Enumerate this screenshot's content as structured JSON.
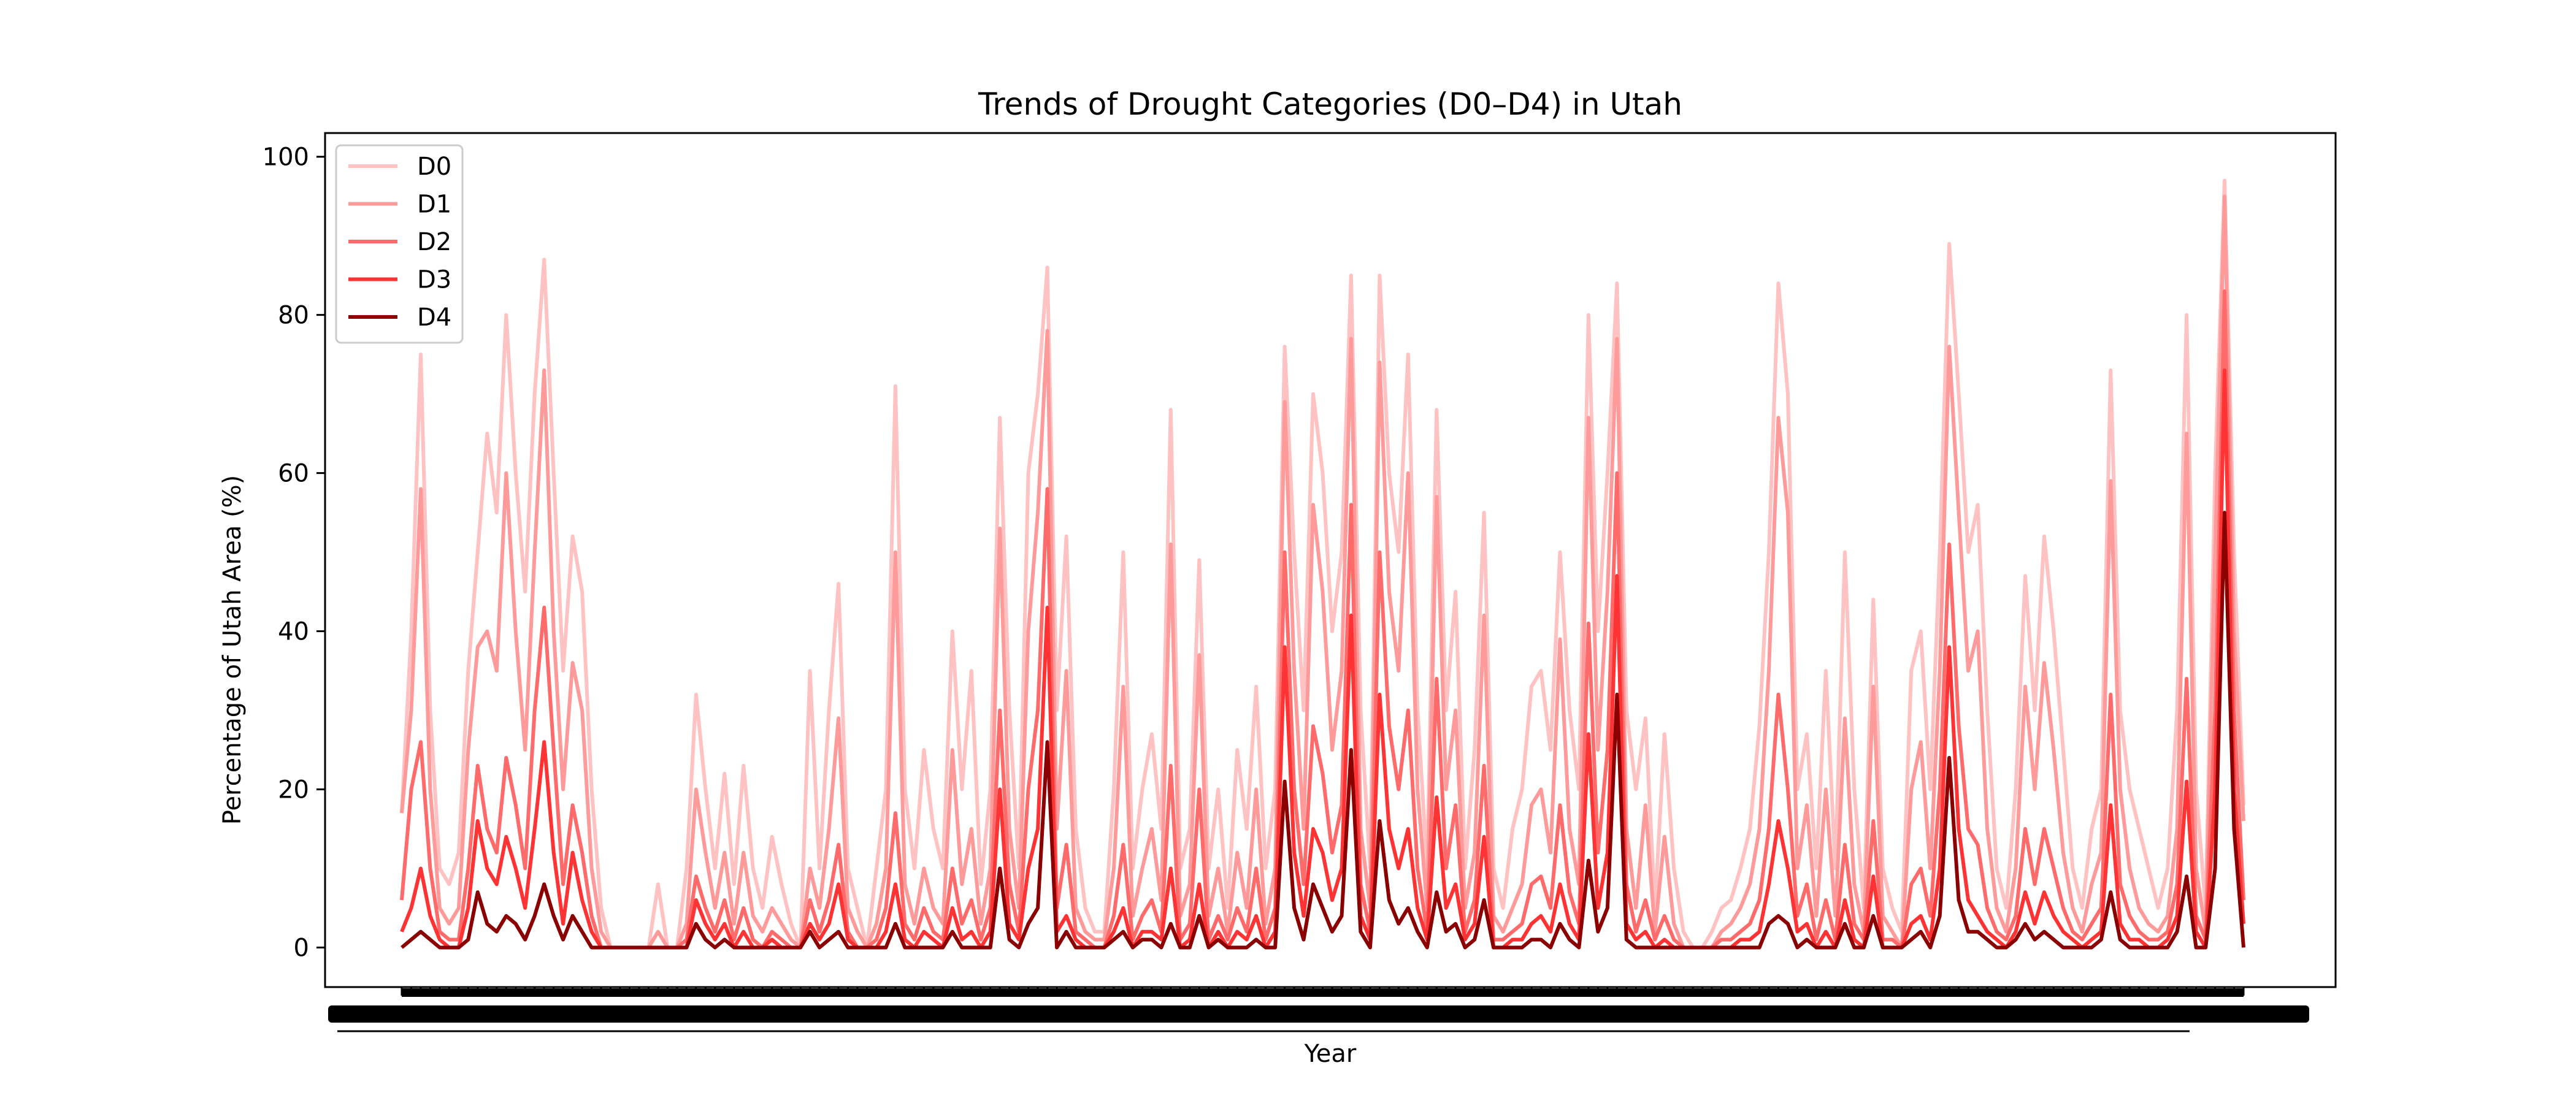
{
  "chart_data": {
    "type": "line",
    "title": "Trends of Drought Categories (D0–D4) in Utah",
    "xlabel": "Year",
    "ylabel": "Percentage of Utah Area (%)",
    "ylim": [
      -5,
      103
    ],
    "yticks": [
      0,
      20,
      40,
      60,
      80,
      100
    ],
    "xticks_note": "Tick labels are printed but overlap into an unreadable black band",
    "grid": false,
    "legend_position": "upper left",
    "series": [
      {
        "name": "D0",
        "color": "#ffc2c2",
        "values": [
          17,
          40,
          75,
          30,
          10,
          8,
          12,
          35,
          50,
          65,
          55,
          80,
          60,
          45,
          70,
          87,
          60,
          35,
          52,
          45,
          20,
          5,
          0,
          0,
          0,
          0,
          0,
          8,
          0,
          0,
          10,
          32,
          20,
          10,
          22,
          8,
          23,
          10,
          5,
          14,
          8,
          3,
          0,
          35,
          10,
          30,
          46,
          10,
          5,
          0,
          10,
          20,
          71,
          20,
          10,
          25,
          15,
          10,
          40,
          20,
          35,
          8,
          20,
          67,
          30,
          10,
          60,
          70,
          86,
          30,
          52,
          15,
          5,
          2,
          2,
          20,
          50,
          10,
          20,
          27,
          15,
          68,
          10,
          15,
          49,
          10,
          20,
          5,
          25,
          15,
          33,
          10,
          20,
          76,
          50,
          30,
          70,
          60,
          40,
          50,
          85,
          30,
          10,
          85,
          60,
          50,
          75,
          30,
          10,
          68,
          30,
          45,
          10,
          25,
          55,
          10,
          5,
          15,
          20,
          33,
          35,
          25,
          50,
          30,
          20,
          80,
          40,
          60,
          84,
          30,
          20,
          29,
          5,
          27,
          10,
          2,
          0,
          0,
          2,
          5,
          6,
          10,
          15,
          28,
          50,
          84,
          70,
          20,
          27,
          10,
          35,
          10,
          50,
          20,
          5,
          44,
          10,
          5,
          2,
          35,
          40,
          20,
          50,
          89,
          70,
          50,
          56,
          30,
          10,
          5,
          20,
          47,
          30,
          52,
          40,
          25,
          10,
          5,
          15,
          20,
          73,
          30,
          20,
          15,
          10,
          5,
          10,
          30,
          80,
          20,
          5,
          60,
          97,
          50,
          18
        ]
      },
      {
        "name": "D1",
        "color": "#ff9a9a",
        "values": [
          17,
          30,
          58,
          20,
          5,
          3,
          5,
          25,
          38,
          40,
          35,
          60,
          40,
          25,
          50,
          73,
          40,
          20,
          36,
          30,
          10,
          2,
          0,
          0,
          0,
          0,
          0,
          2,
          0,
          0,
          3,
          20,
          12,
          5,
          12,
          3,
          12,
          4,
          2,
          5,
          3,
          1,
          0,
          10,
          5,
          15,
          29,
          5,
          2,
          0,
          3,
          10,
          50,
          8,
          3,
          10,
          5,
          3,
          25,
          8,
          15,
          3,
          10,
          53,
          15,
          5,
          40,
          55,
          78,
          15,
          35,
          5,
          2,
          1,
          1,
          10,
          33,
          4,
          10,
          15,
          6,
          51,
          4,
          8,
          37,
          4,
          10,
          2,
          12,
          5,
          20,
          3,
          10,
          69,
          35,
          15,
          56,
          45,
          25,
          35,
          77,
          15,
          5,
          74,
          45,
          35,
          60,
          20,
          5,
          57,
          20,
          30,
          5,
          12,
          42,
          4,
          2,
          5,
          8,
          18,
          20,
          12,
          39,
          15,
          8,
          67,
          25,
          45,
          77,
          15,
          5,
          18,
          2,
          14,
          3,
          0,
          0,
          0,
          0,
          2,
          3,
          5,
          8,
          15,
          35,
          67,
          55,
          10,
          18,
          4,
          20,
          4,
          29,
          8,
          2,
          33,
          4,
          2,
          0,
          20,
          26,
          10,
          35,
          76,
          55,
          35,
          40,
          15,
          5,
          2,
          10,
          33,
          20,
          36,
          25,
          12,
          5,
          2,
          8,
          12,
          59,
          20,
          10,
          5,
          3,
          2,
          4,
          15,
          65,
          10,
          2,
          50,
          95,
          40,
          16
        ]
      },
      {
        "name": "D2",
        "color": "#ff6b6b",
        "values": [
          6,
          20,
          26,
          10,
          2,
          1,
          1,
          10,
          23,
          15,
          12,
          24,
          18,
          10,
          30,
          43,
          25,
          8,
          18,
          12,
          4,
          0,
          0,
          0,
          0,
          0,
          0,
          0,
          0,
          0,
          1,
          9,
          5,
          2,
          6,
          1,
          5,
          1,
          0,
          2,
          1,
          0,
          0,
          6,
          2,
          6,
          13,
          2,
          0,
          0,
          1,
          5,
          17,
          3,
          1,
          5,
          2,
          1,
          10,
          3,
          6,
          1,
          5,
          30,
          8,
          2,
          20,
          30,
          58,
          5,
          13,
          2,
          1,
          0,
          0,
          4,
          13,
          1,
          4,
          6,
          2,
          23,
          1,
          3,
          20,
          1,
          4,
          1,
          5,
          2,
          10,
          1,
          5,
          50,
          20,
          8,
          28,
          22,
          12,
          18,
          56,
          8,
          2,
          50,
          28,
          20,
          30,
          10,
          2,
          34,
          10,
          18,
          2,
          6,
          23,
          1,
          1,
          2,
          3,
          8,
          9,
          5,
          18,
          7,
          3,
          41,
          12,
          25,
          60,
          8,
          2,
          6,
          1,
          4,
          1,
          0,
          0,
          0,
          0,
          1,
          1,
          2,
          3,
          6,
          15,
          32,
          20,
          4,
          8,
          1,
          6,
          1,
          13,
          3,
          1,
          16,
          1,
          1,
          0,
          8,
          10,
          4,
          20,
          51,
          28,
          15,
          13,
          5,
          2,
          1,
          4,
          15,
          8,
          15,
          10,
          5,
          2,
          1,
          3,
          5,
          32,
          8,
          4,
          2,
          1,
          1,
          2,
          8,
          34,
          4,
          1,
          30,
          83,
          30,
          6
        ]
      },
      {
        "name": "D3",
        "color": "#ff3333",
        "values": [
          2,
          5,
          10,
          4,
          1,
          0,
          0,
          5,
          16,
          10,
          8,
          14,
          10,
          5,
          15,
          26,
          12,
          3,
          12,
          6,
          2,
          0,
          0,
          0,
          0,
          0,
          0,
          0,
          0,
          0,
          0,
          6,
          3,
          1,
          3,
          0,
          2,
          0,
          0,
          1,
          0,
          0,
          0,
          3,
          1,
          3,
          8,
          1,
          0,
          0,
          0,
          2,
          8,
          1,
          0,
          2,
          1,
          0,
          5,
          1,
          2,
          0,
          2,
          20,
          3,
          1,
          10,
          15,
          43,
          2,
          4,
          1,
          0,
          0,
          0,
          2,
          5,
          0,
          2,
          2,
          1,
          10,
          0,
          1,
          8,
          0,
          2,
          0,
          2,
          1,
          4,
          0,
          2,
          38,
          12,
          4,
          15,
          12,
          6,
          10,
          42,
          4,
          1,
          32,
          15,
          10,
          15,
          5,
          1,
          19,
          5,
          8,
          1,
          3,
          14,
          0,
          0,
          1,
          1,
          3,
          4,
          2,
          8,
          3,
          1,
          27,
          5,
          12,
          47,
          3,
          1,
          2,
          0,
          1,
          0,
          0,
          0,
          0,
          0,
          0,
          0,
          1,
          1,
          2,
          8,
          16,
          10,
          2,
          3,
          0,
          2,
          0,
          6,
          1,
          0,
          9,
          0,
          0,
          0,
          3,
          4,
          1,
          10,
          38,
          15,
          6,
          4,
          2,
          1,
          0,
          2,
          7,
          3,
          7,
          4,
          2,
          1,
          0,
          1,
          2,
          18,
          3,
          1,
          1,
          0,
          0,
          1,
          4,
          21,
          2,
          0,
          20,
          73,
          20,
          3
        ]
      },
      {
        "name": "D4",
        "color": "#8b0000",
        "values": [
          0,
          1,
          2,
          1,
          0,
          0,
          0,
          1,
          7,
          3,
          2,
          4,
          3,
          1,
          4,
          8,
          4,
          1,
          4,
          2,
          0,
          0,
          0,
          0,
          0,
          0,
          0,
          0,
          0,
          0,
          0,
          3,
          1,
          0,
          1,
          0,
          0,
          0,
          0,
          0,
          0,
          0,
          0,
          2,
          0,
          1,
          2,
          0,
          0,
          0,
          0,
          0,
          3,
          0,
          0,
          0,
          0,
          0,
          2,
          0,
          0,
          0,
          0,
          10,
          1,
          0,
          3,
          5,
          26,
          0,
          2,
          0,
          0,
          0,
          0,
          1,
          2,
          0,
          1,
          1,
          0,
          3,
          0,
          0,
          4,
          0,
          1,
          0,
          0,
          0,
          1,
          0,
          0,
          21,
          5,
          1,
          8,
          5,
          2,
          4,
          25,
          2,
          0,
          16,
          6,
          3,
          5,
          2,
          0,
          7,
          2,
          3,
          0,
          1,
          6,
          0,
          0,
          0,
          0,
          1,
          1,
          0,
          3,
          1,
          0,
          11,
          2,
          5,
          32,
          1,
          0,
          0,
          0,
          0,
          0,
          0,
          0,
          0,
          0,
          0,
          0,
          0,
          0,
          0,
          3,
          4,
          3,
          0,
          1,
          0,
          0,
          0,
          3,
          0,
          0,
          4,
          0,
          0,
          0,
          1,
          2,
          0,
          4,
          24,
          6,
          2,
          2,
          1,
          0,
          0,
          1,
          3,
          1,
          2,
          1,
          0,
          0,
          0,
          0,
          1,
          7,
          1,
          0,
          0,
          0,
          0,
          0,
          2,
          9,
          0,
          0,
          10,
          55,
          15,
          0
        ]
      }
    ]
  }
}
